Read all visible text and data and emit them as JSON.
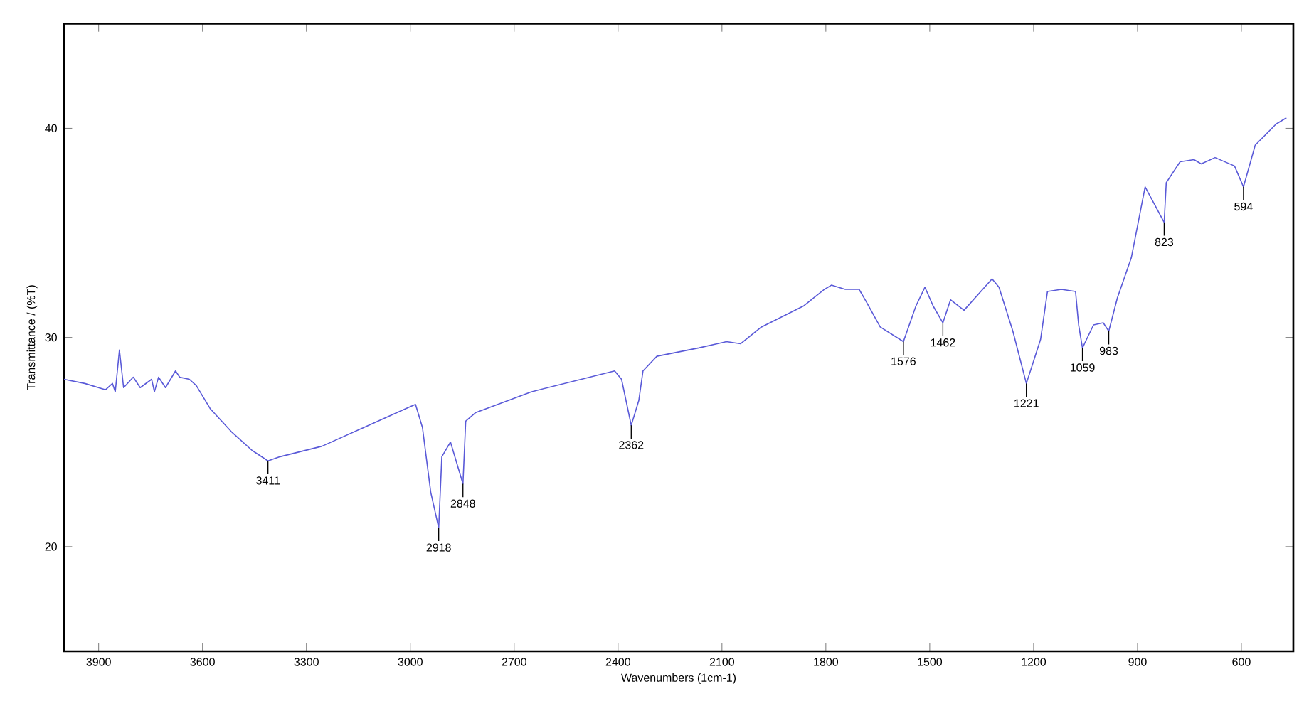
{
  "chart_data": {
    "type": "line",
    "xlabel": "Wavenumbers (1cm-1)",
    "ylabel": "Transmittance / (%T)",
    "xlim": [
      4000,
      450
    ],
    "ylim": [
      15,
      45
    ],
    "xticks": [
      3900,
      3600,
      3300,
      3000,
      2700,
      2400,
      2100,
      1800,
      1500,
      1200,
      900,
      600
    ],
    "yticks": [
      20,
      30,
      40
    ],
    "grid": false,
    "marker": "none",
    "line_style": "solid",
    "series": [
      {
        "color": "#5a5ad8",
        "x": [
          4000,
          3940,
          3880,
          3860,
          3852,
          3840,
          3828,
          3800,
          3780,
          3747,
          3739,
          3727,
          3707,
          3678,
          3666,
          3638,
          3618,
          3578,
          3517,
          3457,
          3411,
          3376,
          3255,
          3134,
          3013,
          2985,
          2965,
          2941,
          2918,
          2909,
          2884,
          2848,
          2840,
          2812,
          2651,
          2410,
          2390,
          2362,
          2340,
          2328,
          2288,
          2167,
          2087,
          2046,
          1986,
          1865,
          1804,
          1784,
          1744,
          1704,
          1683,
          1643,
          1576,
          1540,
          1514,
          1490,
          1462,
          1440,
          1401,
          1320,
          1300,
          1260,
          1221,
          1180,
          1160,
          1120,
          1079,
          1070,
          1059,
          1027,
          999,
          983,
          958,
          918,
          878,
          823,
          817,
          777,
          737,
          716,
          676,
          620,
          594,
          560,
          500,
          470
        ],
        "values": [
          28.0,
          27.8,
          27.5,
          27.8,
          27.4,
          29.4,
          27.6,
          28.1,
          27.6,
          28.0,
          27.4,
          28.1,
          27.6,
          28.4,
          28.1,
          28.0,
          27.7,
          26.6,
          25.5,
          24.6,
          24.1,
          24.3,
          24.8,
          25.7,
          26.6,
          26.8,
          25.7,
          22.6,
          20.9,
          24.3,
          25.0,
          23.0,
          26.0,
          26.4,
          27.4,
          28.4,
          28.0,
          25.8,
          27.0,
          28.4,
          29.1,
          29.5,
          29.8,
          29.7,
          30.5,
          31.5,
          32.3,
          32.5,
          32.3,
          32.3,
          31.7,
          30.5,
          29.8,
          31.5,
          32.4,
          31.5,
          30.7,
          31.8,
          31.3,
          32.8,
          32.4,
          30.3,
          27.8,
          29.9,
          32.2,
          32.3,
          32.2,
          30.6,
          29.5,
          30.6,
          30.7,
          30.3,
          31.9,
          33.8,
          37.2,
          35.5,
          37.4,
          38.4,
          38.5,
          38.3,
          38.6,
          38.2,
          37.2,
          39.2,
          40.2,
          40.5
        ]
      }
    ],
    "annotations": [
      {
        "text": "3411",
        "x": 3411,
        "y": 24.1
      },
      {
        "text": "2918",
        "x": 2918,
        "y": 20.9
      },
      {
        "text": "2848",
        "x": 2848,
        "y": 23.0
      },
      {
        "text": "2362",
        "x": 2362,
        "y": 25.8
      },
      {
        "text": "1576",
        "x": 1576,
        "y": 29.8
      },
      {
        "text": "1462",
        "x": 1462,
        "y": 30.7
      },
      {
        "text": "1221",
        "x": 1221,
        "y": 27.8
      },
      {
        "text": "1059",
        "x": 1059,
        "y": 29.5
      },
      {
        "text": "983",
        "x": 983,
        "y": 30.3
      },
      {
        "text": "823",
        "x": 823,
        "y": 35.5
      },
      {
        "text": "594",
        "x": 594,
        "y": 37.2
      }
    ]
  }
}
